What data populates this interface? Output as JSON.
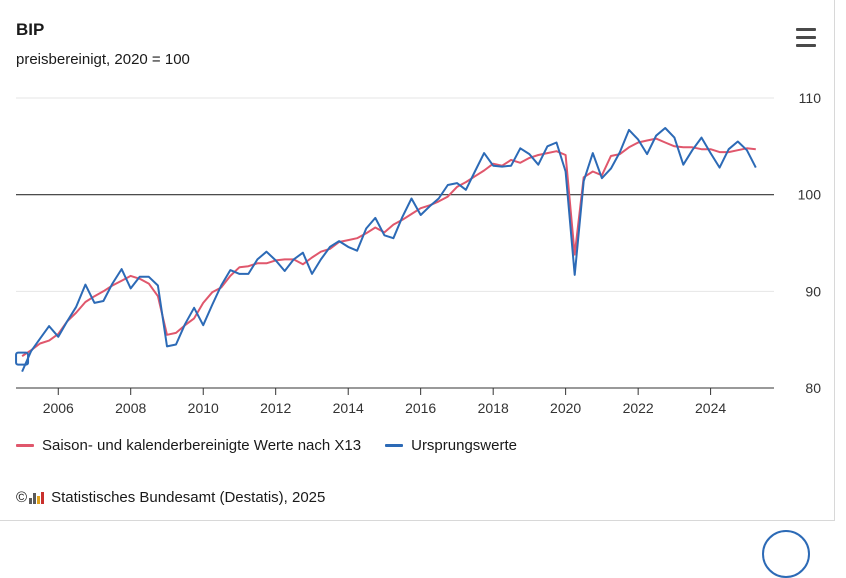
{
  "header": {
    "title": "BIP",
    "subtitle": "preisbereinigt, 2020 = 100"
  },
  "menu": {
    "icon": "hamburger-menu-icon"
  },
  "legend": {
    "items": [
      {
        "label": "Saison- und kalenderbereinigte Werte nach X13",
        "color": "#e0576c"
      },
      {
        "label": "Ursprungswerte",
        "color": "#2c6ab6"
      }
    ]
  },
  "credits": {
    "copyright": "©",
    "logo_icon": "destatis-bar-logo-icon",
    "text": "Statistisches Bundesamt (Destatis), 2025"
  },
  "chart_data": {
    "type": "line",
    "title": "BIP",
    "subtitle": "preisbereinigt, 2020 = 100",
    "xlabel": "",
    "ylabel": "",
    "x_ticks": [
      "2006",
      "2008",
      "2010",
      "2012",
      "2014",
      "2016",
      "2018",
      "2020",
      "2022",
      "2024"
    ],
    "y_ticks": [
      "80",
      "90",
      "100",
      "110"
    ],
    "ylim": [
      80,
      110
    ],
    "xlim": [
      "2004-11-01",
      "2025-10-01"
    ],
    "reference_line": 100,
    "grid": true,
    "y_axis_position": "right",
    "legend_position": "bottom-left",
    "x": [
      "2005-01-01",
      "2005-04-01",
      "2005-07-01",
      "2005-10-01",
      "2006-01-01",
      "2006-04-01",
      "2006-07-01",
      "2006-10-01",
      "2007-01-01",
      "2007-04-01",
      "2007-07-01",
      "2007-10-01",
      "2008-01-01",
      "2008-04-01",
      "2008-07-01",
      "2008-10-01",
      "2009-01-01",
      "2009-04-01",
      "2009-07-01",
      "2009-10-01",
      "2010-01-01",
      "2010-04-01",
      "2010-07-01",
      "2010-10-01",
      "2011-01-01",
      "2011-04-01",
      "2011-07-01",
      "2011-10-01",
      "2012-01-01",
      "2012-04-01",
      "2012-07-01",
      "2012-10-01",
      "2013-01-01",
      "2013-04-01",
      "2013-07-01",
      "2013-10-01",
      "2014-01-01",
      "2014-04-01",
      "2014-07-01",
      "2014-10-01",
      "2015-01-01",
      "2015-04-01",
      "2015-07-01",
      "2015-10-01",
      "2016-01-01",
      "2016-04-01",
      "2016-07-01",
      "2016-10-01",
      "2017-01-01",
      "2017-04-01",
      "2017-07-01",
      "2017-10-01",
      "2018-01-01",
      "2018-04-01",
      "2018-07-01",
      "2018-10-01",
      "2019-01-01",
      "2019-04-01",
      "2019-07-01",
      "2019-10-01",
      "2020-01-01",
      "2020-04-01",
      "2020-07-01",
      "2020-10-01",
      "2021-01-01",
      "2021-04-01",
      "2021-07-01",
      "2021-10-01",
      "2022-01-01",
      "2022-04-01",
      "2022-07-01",
      "2022-10-01",
      "2023-01-01",
      "2023-04-01",
      "2023-07-01",
      "2023-10-01",
      "2024-01-01",
      "2024-04-01",
      "2024-07-01",
      "2024-10-01",
      "2025-01-01",
      "2025-04-01"
    ],
    "series": [
      {
        "name": "Saison- und kalenderbereinigte Werte nach X13",
        "color": "#e0576c",
        "values": [
          83.3,
          83.9,
          84.6,
          84.9,
          85.6,
          86.9,
          87.8,
          88.9,
          89.5,
          90.0,
          90.6,
          91.1,
          91.6,
          91.3,
          90.8,
          89.5,
          85.5,
          85.7,
          86.5,
          87.2,
          88.8,
          89.9,
          90.4,
          91.6,
          92.5,
          92.6,
          92.9,
          92.9,
          93.2,
          93.3,
          93.3,
          92.8,
          93.5,
          94.1,
          94.4,
          95.1,
          95.3,
          95.5,
          96.0,
          96.6,
          96.1,
          96.9,
          97.4,
          98.0,
          98.6,
          98.9,
          99.3,
          99.8,
          100.8,
          101.3,
          101.9,
          102.5,
          103.2,
          103.0,
          103.6,
          103.3,
          103.8,
          104.1,
          104.3,
          104.5,
          104.1,
          93.8,
          101.8,
          102.4,
          102.0,
          104.0,
          104.2,
          104.9,
          105.4,
          105.6,
          105.8,
          105.4,
          105.0,
          104.9,
          104.9,
          104.7,
          104.7,
          104.4,
          104.4,
          104.6,
          104.8,
          104.7
        ]
      },
      {
        "name": "Ursprungswerte",
        "color": "#2c6ab6",
        "values": [
          81.7,
          83.8,
          85.1,
          86.4,
          85.3,
          86.9,
          88.4,
          90.7,
          88.8,
          89.0,
          90.8,
          92.3,
          90.3,
          91.5,
          91.5,
          90.6,
          84.3,
          84.5,
          86.6,
          88.3,
          86.5,
          88.6,
          90.6,
          92.2,
          91.8,
          91.8,
          93.3,
          94.1,
          93.2,
          92.1,
          93.3,
          94.0,
          91.8,
          93.3,
          94.6,
          95.2,
          94.6,
          94.2,
          96.5,
          97.6,
          95.8,
          95.5,
          97.7,
          99.6,
          97.9,
          98.8,
          99.6,
          101.0,
          101.2,
          100.5,
          102.4,
          104.3,
          103.0,
          102.9,
          103.0,
          104.8,
          104.2,
          103.1,
          105.0,
          105.4,
          102.4,
          91.7,
          101.4,
          104.3,
          101.7,
          102.7,
          104.4,
          106.7,
          105.7,
          104.2,
          106.1,
          106.9,
          105.9,
          103.1,
          104.6,
          105.9,
          104.3,
          102.8,
          104.7,
          105.5,
          104.6,
          102.8
        ]
      }
    ]
  }
}
